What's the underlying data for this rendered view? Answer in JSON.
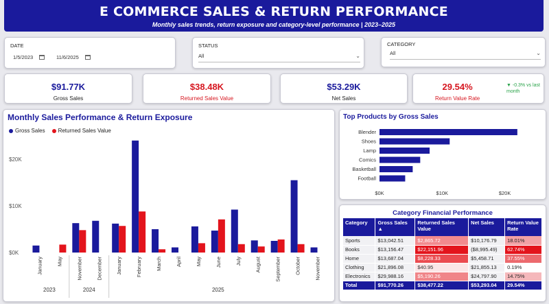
{
  "header": {
    "title": "E COMMERCE SALES & RETURN PERFORMANCE",
    "subtitle": "Monthly sales trends, return exposure and category-level performance | 2023–2025"
  },
  "filters": {
    "date": {
      "label": "DATE",
      "start": "1/5/2023",
      "end": "11/6/2025"
    },
    "status": {
      "label": "STATUS",
      "value": "All"
    },
    "category": {
      "label": "CATEGORY",
      "value": "All"
    }
  },
  "kpis": [
    {
      "value": "$91.77K",
      "label": "Gross Sales"
    },
    {
      "value": "$38.48K",
      "label": "Returned Sales Value"
    },
    {
      "value": "$53.29K",
      "label": "Net Sales"
    },
    {
      "value": "29.54%",
      "label": "Return Value Rate",
      "delta": "▼ -0.3% vs last month"
    }
  ],
  "colors": {
    "primary": "#1a1a9c",
    "return": "#e3141c",
    "positive": "#2aa34a"
  },
  "chart_data": [
    {
      "type": "bar",
      "title": "Monthly Sales Performance & Return Exposure",
      "categories": [
        "January",
        "May",
        "November",
        "December",
        "January",
        "February",
        "March",
        "April",
        "May",
        "June",
        "July",
        "August",
        "September",
        "October",
        "November"
      ],
      "year_groups": [
        {
          "label": "2023",
          "count": 2
        },
        {
          "label": "2024",
          "count": 2
        },
        {
          "label": "2025",
          "count": 11
        }
      ],
      "series": [
        {
          "name": "Gross Sales",
          "values": [
            1500,
            0,
            6300,
            6800,
            6200,
            24000,
            5000,
            1100,
            5600,
            4700,
            9200,
            2600,
            2500,
            15500,
            1100
          ]
        },
        {
          "name": "Returned Sales Value",
          "values": [
            0,
            1700,
            4800,
            0,
            5700,
            8800,
            700,
            0,
            2000,
            7100,
            1800,
            1300,
            2800,
            1800,
            0
          ]
        }
      ],
      "y_ticks": [
        "$0K",
        "$10K",
        "$20K"
      ],
      "ylim": [
        0,
        25000
      ]
    },
    {
      "type": "bar",
      "orientation": "horizontal",
      "title": "Top Products by Gross Sales",
      "categories": [
        "Blender",
        "Shoes",
        "Lamp",
        "Comics",
        "Basketball",
        "Football"
      ],
      "values": [
        22000,
        11200,
        8000,
        6500,
        5300,
        4100
      ],
      "x_ticks": [
        "$0K",
        "$10K",
        "$20K"
      ],
      "xlim": [
        0,
        23000
      ]
    }
  ],
  "table": {
    "title": "Category Financial Performance",
    "headers": [
      "Category",
      "Gross Sales",
      "Returned Sales Value",
      "Net Sales",
      "Return Value Rate"
    ],
    "rows": [
      {
        "category": "Sports",
        "gross": "$13,042.51",
        "returned": "$2,865.72",
        "net": "$10,176.79",
        "rate": "18.01%"
      },
      {
        "category": "Books",
        "gross": "$13,156.47",
        "returned": "$22,151.96",
        "net": "($8,995.49)",
        "rate": "62.74%"
      },
      {
        "category": "Home",
        "gross": "$13,687.04",
        "returned": "$8,228.33",
        "net": "$5,458.71",
        "rate": "37.55%"
      },
      {
        "category": "Clothing",
        "gross": "$21,896.08",
        "returned": "$40.95",
        "net": "$21,855.13",
        "rate": "0.19%"
      },
      {
        "category": "Electronics",
        "gross": "$29,988.16",
        "returned": "$5,190.26",
        "net": "$24,797.90",
        "rate": "14.75%"
      }
    ],
    "total": {
      "category": "Total",
      "gross": "$91,770.26",
      "returned": "$38,477.22",
      "net": "$53,293.04",
      "rate": "29.54%"
    }
  }
}
